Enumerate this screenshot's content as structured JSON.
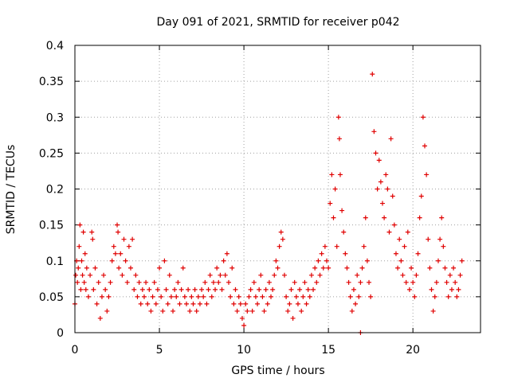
{
  "chart_data": {
    "type": "scatter",
    "title": "Day 091 of 2021, SRMTID for receiver p042",
    "xlabel": "GPS time / hours",
    "ylabel": "SRMTID / TECUs",
    "xlim": [
      0,
      24
    ],
    "ylim": [
      0,
      0.4
    ],
    "x_ticks": [
      0,
      5,
      10,
      15,
      20
    ],
    "y_ticks": [
      0,
      0.05,
      0.1,
      0.15,
      0.2,
      0.25,
      0.3,
      0.35,
      0.4
    ],
    "x_tick_labels": [
      "0",
      "5",
      "10",
      "15",
      "20"
    ],
    "y_tick_labels": [
      "0",
      "0.05",
      "0.1",
      "0.15",
      "0.2",
      "0.25",
      "0.3",
      "0.35",
      "0.4"
    ],
    "grid": true,
    "marker": "plus",
    "color": "#e00000",
    "series": [
      {
        "name": "p042",
        "points": [
          [
            0.0,
            0.04
          ],
          [
            0.05,
            0.08
          ],
          [
            0.1,
            0.1
          ],
          [
            0.15,
            0.07
          ],
          [
            0.2,
            0.09
          ],
          [
            0.25,
            0.12
          ],
          [
            0.3,
            0.15
          ],
          [
            0.35,
            0.06
          ],
          [
            0.4,
            0.1
          ],
          [
            0.45,
            0.08
          ],
          [
            0.5,
            0.14
          ],
          [
            0.55,
            0.07
          ],
          [
            0.6,
            0.11
          ],
          [
            0.65,
            0.06
          ],
          [
            0.7,
            0.09
          ],
          [
            0.8,
            0.05
          ],
          [
            0.9,
            0.08
          ],
          [
            1.0,
            0.14
          ],
          [
            1.05,
            0.13
          ],
          [
            1.1,
            0.06
          ],
          [
            1.2,
            0.09
          ],
          [
            1.3,
            0.04
          ],
          [
            1.4,
            0.07
          ],
          [
            1.5,
            0.02
          ],
          [
            1.6,
            0.05
          ],
          [
            1.7,
            0.08
          ],
          [
            1.8,
            0.06
          ],
          [
            1.9,
            0.03
          ],
          [
            2.0,
            0.05
          ],
          [
            2.1,
            0.07
          ],
          [
            2.2,
            0.1
          ],
          [
            2.3,
            0.12
          ],
          [
            2.4,
            0.11
          ],
          [
            2.5,
            0.15
          ],
          [
            2.55,
            0.14
          ],
          [
            2.6,
            0.09
          ],
          [
            2.7,
            0.11
          ],
          [
            2.8,
            0.08
          ],
          [
            2.9,
            0.13
          ],
          [
            3.0,
            0.1
          ],
          [
            3.1,
            0.07
          ],
          [
            3.2,
            0.12
          ],
          [
            3.3,
            0.09
          ],
          [
            3.4,
            0.13
          ],
          [
            3.5,
            0.06
          ],
          [
            3.6,
            0.08
          ],
          [
            3.7,
            0.05
          ],
          [
            3.8,
            0.07
          ],
          [
            3.9,
            0.04
          ],
          [
            4.0,
            0.06
          ],
          [
            4.1,
            0.05
          ],
          [
            4.2,
            0.07
          ],
          [
            4.3,
            0.04
          ],
          [
            4.4,
            0.06
          ],
          [
            4.5,
            0.03
          ],
          [
            4.6,
            0.05
          ],
          [
            4.7,
            0.07
          ],
          [
            4.8,
            0.04
          ],
          [
            4.9,
            0.06
          ],
          [
            5.0,
            0.09
          ],
          [
            5.1,
            0.05
          ],
          [
            5.2,
            0.03
          ],
          [
            5.3,
            0.1
          ],
          [
            5.4,
            0.06
          ],
          [
            5.5,
            0.04
          ],
          [
            5.6,
            0.08
          ],
          [
            5.7,
            0.05
          ],
          [
            5.8,
            0.03
          ],
          [
            5.9,
            0.06
          ],
          [
            6.0,
            0.05
          ],
          [
            6.1,
            0.07
          ],
          [
            6.2,
            0.04
          ],
          [
            6.3,
            0.06
          ],
          [
            6.4,
            0.09
          ],
          [
            6.5,
            0.05
          ],
          [
            6.6,
            0.04
          ],
          [
            6.7,
            0.06
          ],
          [
            6.8,
            0.03
          ],
          [
            6.9,
            0.05
          ],
          [
            7.0,
            0.04
          ],
          [
            7.1,
            0.06
          ],
          [
            7.2,
            0.03
          ],
          [
            7.3,
            0.05
          ],
          [
            7.4,
            0.04
          ],
          [
            7.5,
            0.06
          ],
          [
            7.6,
            0.05
          ],
          [
            7.7,
            0.07
          ],
          [
            7.8,
            0.04
          ],
          [
            7.9,
            0.06
          ],
          [
            8.0,
            0.08
          ],
          [
            8.1,
            0.05
          ],
          [
            8.2,
            0.07
          ],
          [
            8.3,
            0.06
          ],
          [
            8.4,
            0.09
          ],
          [
            8.5,
            0.07
          ],
          [
            8.6,
            0.08
          ],
          [
            8.7,
            0.06
          ],
          [
            8.8,
            0.1
          ],
          [
            8.9,
            0.08
          ],
          [
            9.0,
            0.11
          ],
          [
            9.1,
            0.07
          ],
          [
            9.2,
            0.05
          ],
          [
            9.3,
            0.09
          ],
          [
            9.4,
            0.04
          ],
          [
            9.5,
            0.06
          ],
          [
            9.6,
            0.03
          ],
          [
            9.7,
            0.05
          ],
          [
            9.8,
            0.04
          ],
          [
            9.9,
            0.02
          ],
          [
            10.0,
            0.01
          ],
          [
            10.1,
            0.04
          ],
          [
            10.2,
            0.03
          ],
          [
            10.3,
            0.05
          ],
          [
            10.4,
            0.06
          ],
          [
            10.5,
            0.03
          ],
          [
            10.6,
            0.07
          ],
          [
            10.7,
            0.05
          ],
          [
            10.8,
            0.04
          ],
          [
            10.9,
            0.06
          ],
          [
            11.0,
            0.08
          ],
          [
            11.1,
            0.05
          ],
          [
            11.2,
            0.03
          ],
          [
            11.3,
            0.06
          ],
          [
            11.4,
            0.04
          ],
          [
            11.5,
            0.07
          ],
          [
            11.6,
            0.05
          ],
          [
            11.7,
            0.06
          ],
          [
            11.8,
            0.08
          ],
          [
            11.9,
            0.1
          ],
          [
            12.0,
            0.09
          ],
          [
            12.1,
            0.12
          ],
          [
            12.2,
            0.14
          ],
          [
            12.3,
            0.13
          ],
          [
            12.4,
            0.08
          ],
          [
            12.5,
            0.05
          ],
          [
            12.6,
            0.03
          ],
          [
            12.7,
            0.04
          ],
          [
            12.8,
            0.06
          ],
          [
            12.9,
            0.02
          ],
          [
            13.0,
            0.07
          ],
          [
            13.1,
            0.05
          ],
          [
            13.2,
            0.04
          ],
          [
            13.3,
            0.06
          ],
          [
            13.4,
            0.03
          ],
          [
            13.5,
            0.05
          ],
          [
            13.6,
            0.07
          ],
          [
            13.7,
            0.04
          ],
          [
            13.8,
            0.06
          ],
          [
            13.9,
            0.05
          ],
          [
            14.0,
            0.08
          ],
          [
            14.1,
            0.06
          ],
          [
            14.2,
            0.09
          ],
          [
            14.3,
            0.07
          ],
          [
            14.4,
            0.1
          ],
          [
            14.5,
            0.08
          ],
          [
            14.6,
            0.11
          ],
          [
            14.7,
            0.09
          ],
          [
            14.8,
            0.12
          ],
          [
            14.9,
            0.1
          ],
          [
            15.0,
            0.09
          ],
          [
            15.1,
            0.18
          ],
          [
            15.2,
            0.22
          ],
          [
            15.3,
            0.16
          ],
          [
            15.4,
            0.2
          ],
          [
            15.5,
            0.12
          ],
          [
            15.6,
            0.3
          ],
          [
            15.65,
            0.27
          ],
          [
            15.7,
            0.22
          ],
          [
            15.8,
            0.17
          ],
          [
            15.9,
            0.14
          ],
          [
            16.0,
            0.11
          ],
          [
            16.1,
            0.09
          ],
          [
            16.2,
            0.07
          ],
          [
            16.3,
            0.05
          ],
          [
            16.4,
            0.03
          ],
          [
            16.5,
            0.06
          ],
          [
            16.6,
            0.04
          ],
          [
            16.7,
            0.08
          ],
          [
            16.8,
            0.05
          ],
          [
            16.9,
            0.07
          ],
          [
            17.0,
            0.09
          ],
          [
            17.1,
            0.12
          ],
          [
            17.2,
            0.16
          ],
          [
            17.3,
            0.1
          ],
          [
            17.4,
            0.07
          ],
          [
            17.5,
            0.05
          ],
          [
            17.6,
            0.36
          ],
          [
            17.7,
            0.28
          ],
          [
            17.8,
            0.25
          ],
          [
            17.9,
            0.2
          ],
          [
            18.0,
            0.24
          ],
          [
            18.1,
            0.21
          ],
          [
            18.2,
            0.18
          ],
          [
            18.3,
            0.16
          ],
          [
            18.4,
            0.22
          ],
          [
            18.5,
            0.2
          ],
          [
            18.6,
            0.14
          ],
          [
            18.7,
            0.27
          ],
          [
            18.8,
            0.19
          ],
          [
            18.9,
            0.15
          ],
          [
            19.0,
            0.11
          ],
          [
            19.1,
            0.09
          ],
          [
            19.2,
            0.13
          ],
          [
            19.3,
            0.1
          ],
          [
            19.4,
            0.08
          ],
          [
            19.5,
            0.12
          ],
          [
            19.6,
            0.07
          ],
          [
            19.7,
            0.14
          ],
          [
            19.8,
            0.06
          ],
          [
            19.9,
            0.09
          ],
          [
            20.0,
            0.07
          ],
          [
            20.1,
            0.05
          ],
          [
            20.2,
            0.08
          ],
          [
            20.3,
            0.11
          ],
          [
            20.4,
            0.16
          ],
          [
            20.5,
            0.19
          ],
          [
            20.6,
            0.3
          ],
          [
            20.7,
            0.26
          ],
          [
            20.8,
            0.22
          ],
          [
            20.9,
            0.13
          ],
          [
            21.0,
            0.09
          ],
          [
            21.1,
            0.06
          ],
          [
            21.2,
            0.03
          ],
          [
            21.3,
            0.05
          ],
          [
            21.4,
            0.07
          ],
          [
            21.5,
            0.1
          ],
          [
            21.6,
            0.13
          ],
          [
            21.7,
            0.16
          ],
          [
            21.8,
            0.12
          ],
          [
            21.9,
            0.09
          ],
          [
            22.0,
            0.07
          ],
          [
            22.1,
            0.05
          ],
          [
            22.2,
            0.08
          ],
          [
            22.3,
            0.06
          ],
          [
            22.4,
            0.09
          ],
          [
            22.5,
            0.07
          ],
          [
            22.6,
            0.05
          ],
          [
            22.7,
            0.06
          ],
          [
            22.8,
            0.08
          ],
          [
            22.9,
            0.1
          ],
          [
            16.9,
            0.0
          ]
        ]
      }
    ]
  }
}
